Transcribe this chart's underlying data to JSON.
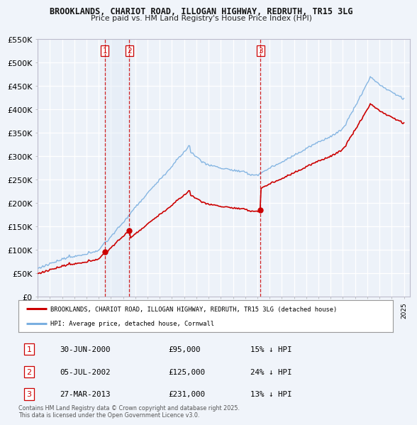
{
  "title": "BROOKLANDS, CHARIOT ROAD, ILLOGAN HIGHWAY, REDRUTH, TR15 3LG",
  "subtitle": "Price paid vs. HM Land Registry's House Price Index (HPI)",
  "ylabel_ticks": [
    "£0",
    "£50K",
    "£100K",
    "£150K",
    "£200K",
    "£250K",
    "£300K",
    "£350K",
    "£400K",
    "£450K",
    "£500K",
    "£550K"
  ],
  "ylim": [
    0,
    550000
  ],
  "ytick_vals": [
    0,
    50000,
    100000,
    150000,
    200000,
    250000,
    300000,
    350000,
    400000,
    450000,
    500000,
    550000
  ],
  "hpi_color": "#7aafe0",
  "price_color": "#cc0000",
  "vline_color": "#cc0000",
  "background_color": "#f0f4fa",
  "plot_bg": "#edf2f9",
  "grid_color": "#ffffff",
  "highlight_color": "#dce8f5",
  "transactions": [
    {
      "id": 1,
      "date_x": 2000.5,
      "price": 95000,
      "label": "30-JUN-2000",
      "amount": "£95,000",
      "hpi_pct": "15% ↓ HPI"
    },
    {
      "id": 2,
      "date_x": 2002.5,
      "price": 125000,
      "label": "05-JUL-2002",
      "amount": "£125,000",
      "hpi_pct": "24% ↓ HPI"
    },
    {
      "id": 3,
      "date_x": 2013.25,
      "price": 231000,
      "label": "27-MAR-2013",
      "amount": "£231,000",
      "hpi_pct": "13% ↓ HPI"
    }
  ],
  "legend_entries": [
    {
      "label": "BROOKLANDS, CHARIOT ROAD, ILLOGAN HIGHWAY, REDRUTH, TR15 3LG (detached house)",
      "color": "#cc0000"
    },
    {
      "label": "HPI: Average price, detached house, Cornwall",
      "color": "#7aafe0"
    }
  ],
  "footer": "Contains HM Land Registry data © Crown copyright and database right 2025.\nThis data is licensed under the Open Government Licence v3.0.",
  "xmin": 1995,
  "xmax": 2025.5
}
